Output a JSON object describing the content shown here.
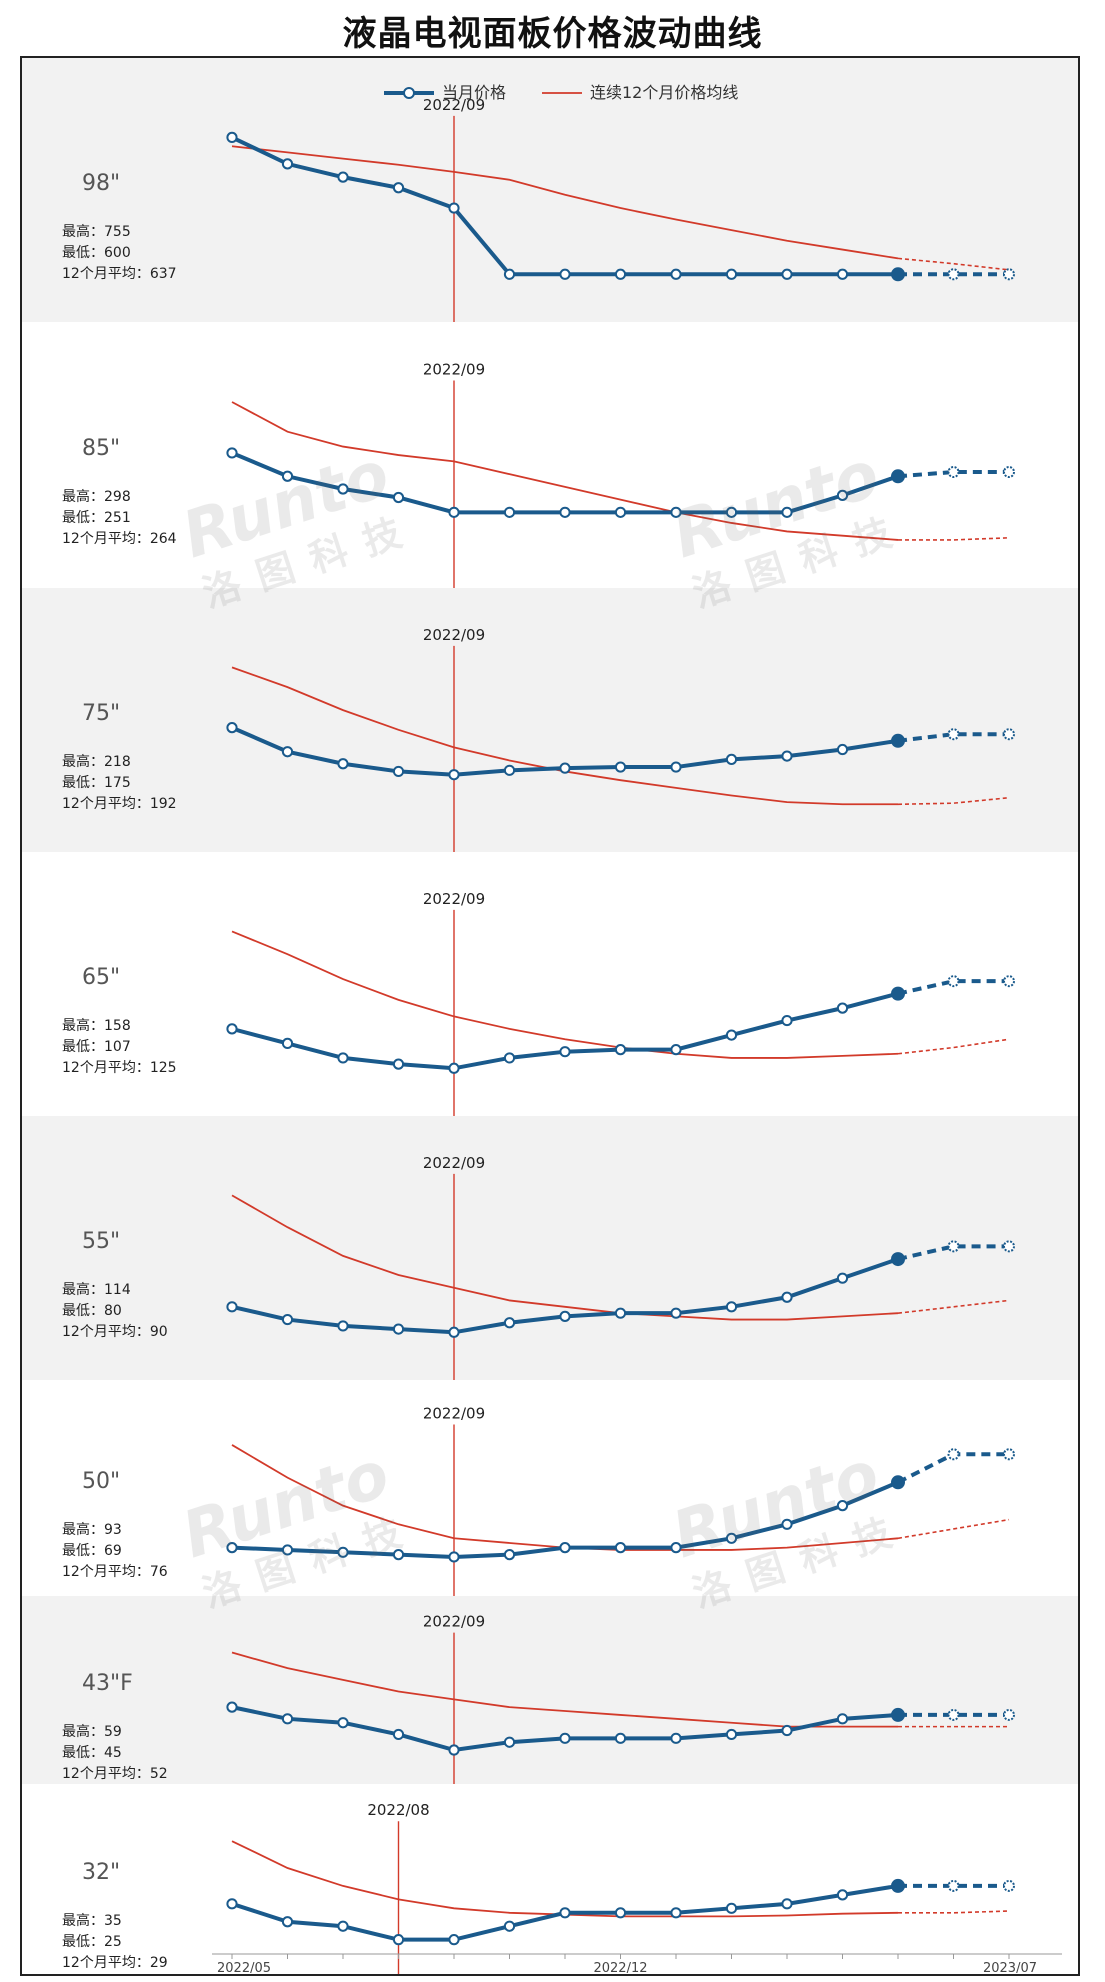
{
  "title": "液晶电视面板价格波动曲线",
  "legend": {
    "current": "当月价格",
    "average": "连续12个月价格均线"
  },
  "labels": {
    "high": "最高：",
    "low": "最低：",
    "avg12": "12个月平均："
  },
  "watermark": {
    "latin": "Runto",
    "cn": "洛图科技"
  },
  "colors": {
    "current": "#1a5a8c",
    "average": "#d23a2a",
    "band": "#f2f2f2",
    "marker_fill": "#ffffff"
  },
  "chart_data": {
    "type": "line",
    "x_ticks": [
      "2022/05",
      "2022/12",
      "2023/07"
    ],
    "x": [
      "2022/05",
      "2022/06",
      "2022/07",
      "2022/08",
      "2022/09",
      "2022/10",
      "2022/11",
      "2022/12",
      "2023/01",
      "2023/02",
      "2023/03",
      "2023/04",
      "2023/05",
      "2023/06",
      "2023/07"
    ],
    "panels": [
      {
        "size": "98\"",
        "high": 755,
        "low": 600,
        "avg12": 637,
        "marker": "2022/09",
        "current": [
          755,
          725,
          710,
          698,
          675,
          600,
          600,
          600,
          600,
          600,
          600,
          600,
          600,
          600,
          600
        ],
        "average": [
          745,
          738,
          731,
          724,
          716,
          707,
          690,
          675,
          662,
          650,
          638,
          628,
          618,
          612,
          605
        ]
      },
      {
        "size": "85\"",
        "high": 298,
        "low": 251,
        "avg12": 264,
        "marker": "2022/09",
        "current": [
          279,
          268,
          262,
          258,
          251,
          251,
          251,
          251,
          251,
          251,
          251,
          259,
          268,
          270,
          270
        ],
        "average": [
          303,
          289,
          282,
          278,
          275,
          269,
          263,
          257,
          251,
          246,
          242,
          240,
          238,
          238,
          239
        ]
      },
      {
        "size": "75\"",
        "high": 218,
        "low": 175,
        "avg12": 192,
        "marker": "2022/09",
        "current": [
          218,
          196,
          185,
          178,
          175,
          179,
          181,
          182,
          182,
          189,
          192,
          198,
          206,
          212,
          212
        ],
        "average": [
          273,
          255,
          234,
          216,
          200,
          188,
          178,
          170,
          163,
          156,
          150,
          148,
          148,
          149,
          154
        ]
      },
      {
        "size": "65\"",
        "high": 158,
        "low": 107,
        "avg12": 125,
        "marker": "2022/09",
        "current": [
          125,
          118,
          111,
          108,
          106,
          111,
          114,
          115,
          115,
          122,
          129,
          135,
          142,
          148,
          148
        ],
        "average": [
          172,
          161,
          149,
          139,
          131,
          125,
          120,
          116,
          113,
          111,
          111,
          112,
          113,
          116,
          120
        ]
      },
      {
        "size": "55\"",
        "high": 114,
        "low": 80,
        "avg12": 90,
        "marker": "2022/09",
        "current": [
          87,
          83,
          81,
          80,
          79,
          82,
          84,
          85,
          85,
          87,
          90,
          96,
          102,
          106,
          106
        ],
        "average": [
          122,
          112,
          103,
          97,
          93,
          89,
          87,
          85,
          84,
          83,
          83,
          84,
          85,
          87,
          89
        ]
      },
      {
        "size": "50\"",
        "high": 93,
        "low": 69,
        "avg12": 76,
        "marker": "2022/09",
        "current": [
          71,
          70.5,
          70,
          69.5,
          69,
          69.5,
          71,
          71,
          71,
          73,
          76,
          80,
          85,
          91,
          91
        ],
        "average": [
          93,
          86,
          80,
          76,
          73,
          72,
          71,
          70.5,
          70.5,
          70.5,
          71,
          72,
          73,
          75,
          77
        ]
      },
      {
        "size": "43\"F",
        "high": 59,
        "low": 45,
        "avg12": 52,
        "marker": "2022/09",
        "current": [
          51,
          49.5,
          49,
          47.5,
          45.5,
          46.5,
          47,
          47,
          47,
          47.5,
          48,
          49.5,
          50,
          50,
          50
        ],
        "average": [
          58,
          56,
          54.5,
          53,
          52,
          51,
          50.5,
          50,
          49.5,
          49,
          48.5,
          48.5,
          48.5,
          48.5,
          48.5
        ]
      },
      {
        "size": "32\"",
        "high": 35,
        "low": 25,
        "avg12": 29,
        "marker": "2022/08",
        "current": [
          30,
          28,
          27.5,
          26,
          26,
          27.5,
          29,
          29,
          29,
          29.5,
          30,
          31,
          32,
          32,
          32
        ],
        "average": [
          37,
          34,
          32,
          30.5,
          29.5,
          29,
          28.8,
          28.6,
          28.6,
          28.6,
          28.7,
          28.9,
          29,
          29,
          29.2
        ]
      }
    ]
  }
}
